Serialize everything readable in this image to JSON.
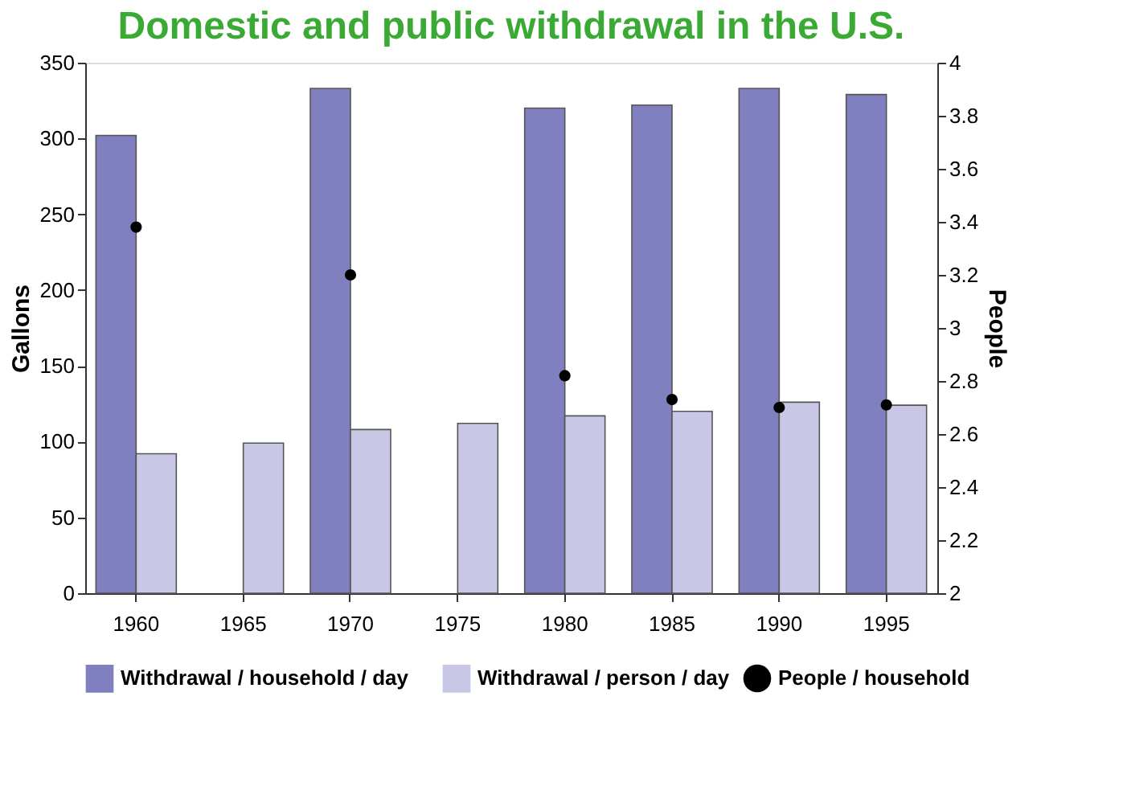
{
  "chart_data": {
    "type": "bar",
    "title": "Domestic and public withdrawal in the U.S.",
    "categories": [
      "1960",
      "1965",
      "1970",
      "1975",
      "1980",
      "1985",
      "1990",
      "1995"
    ],
    "series": [
      {
        "name": "Withdrawal / household / day",
        "color": "#8080c0",
        "values": [
          302,
          null,
          333,
          null,
          320,
          322,
          333,
          329
        ]
      },
      {
        "name": "Withdrawal / person / day",
        "color": "#c8c8e6",
        "values": [
          92,
          99,
          108,
          112,
          117,
          120,
          126,
          124
        ]
      },
      {
        "name": "People / household",
        "type": "scatter",
        "axis": "y2",
        "color": "#000000",
        "marker": "circle",
        "values": [
          3.38,
          null,
          3.2,
          null,
          2.82,
          2.73,
          2.7,
          2.71
        ]
      }
    ],
    "ylabel": "Gallons",
    "y2label": "People",
    "ylim": [
      0,
      350
    ],
    "yticks": [
      0,
      50,
      100,
      150,
      200,
      250,
      300,
      350
    ],
    "y2lim": [
      2,
      4
    ],
    "y2ticks": [
      2,
      2.2,
      2.4,
      2.6,
      2.8,
      3,
      3.2,
      3.4,
      3.6,
      3.8,
      4
    ],
    "grid": false,
    "legend": "bottom"
  }
}
